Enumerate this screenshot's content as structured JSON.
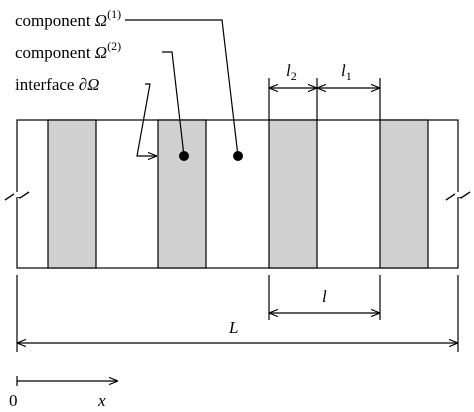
{
  "labels": {
    "component_1": {
      "prefix": "component",
      "symbol": "Ω",
      "sup": "(1)"
    },
    "component_2": {
      "prefix": "component",
      "symbol": "Ω",
      "sup": "(2)"
    },
    "interface": {
      "prefix": "interface",
      "symbol": "∂Ω"
    }
  },
  "dimensions": {
    "l2": {
      "symbol": "l",
      "sub": "2"
    },
    "l1": {
      "symbol": "l",
      "sub": "1"
    },
    "l": {
      "symbol": "l"
    },
    "L": {
      "symbol": "L"
    }
  },
  "axis": {
    "origin": "0",
    "label": "x"
  }
}
